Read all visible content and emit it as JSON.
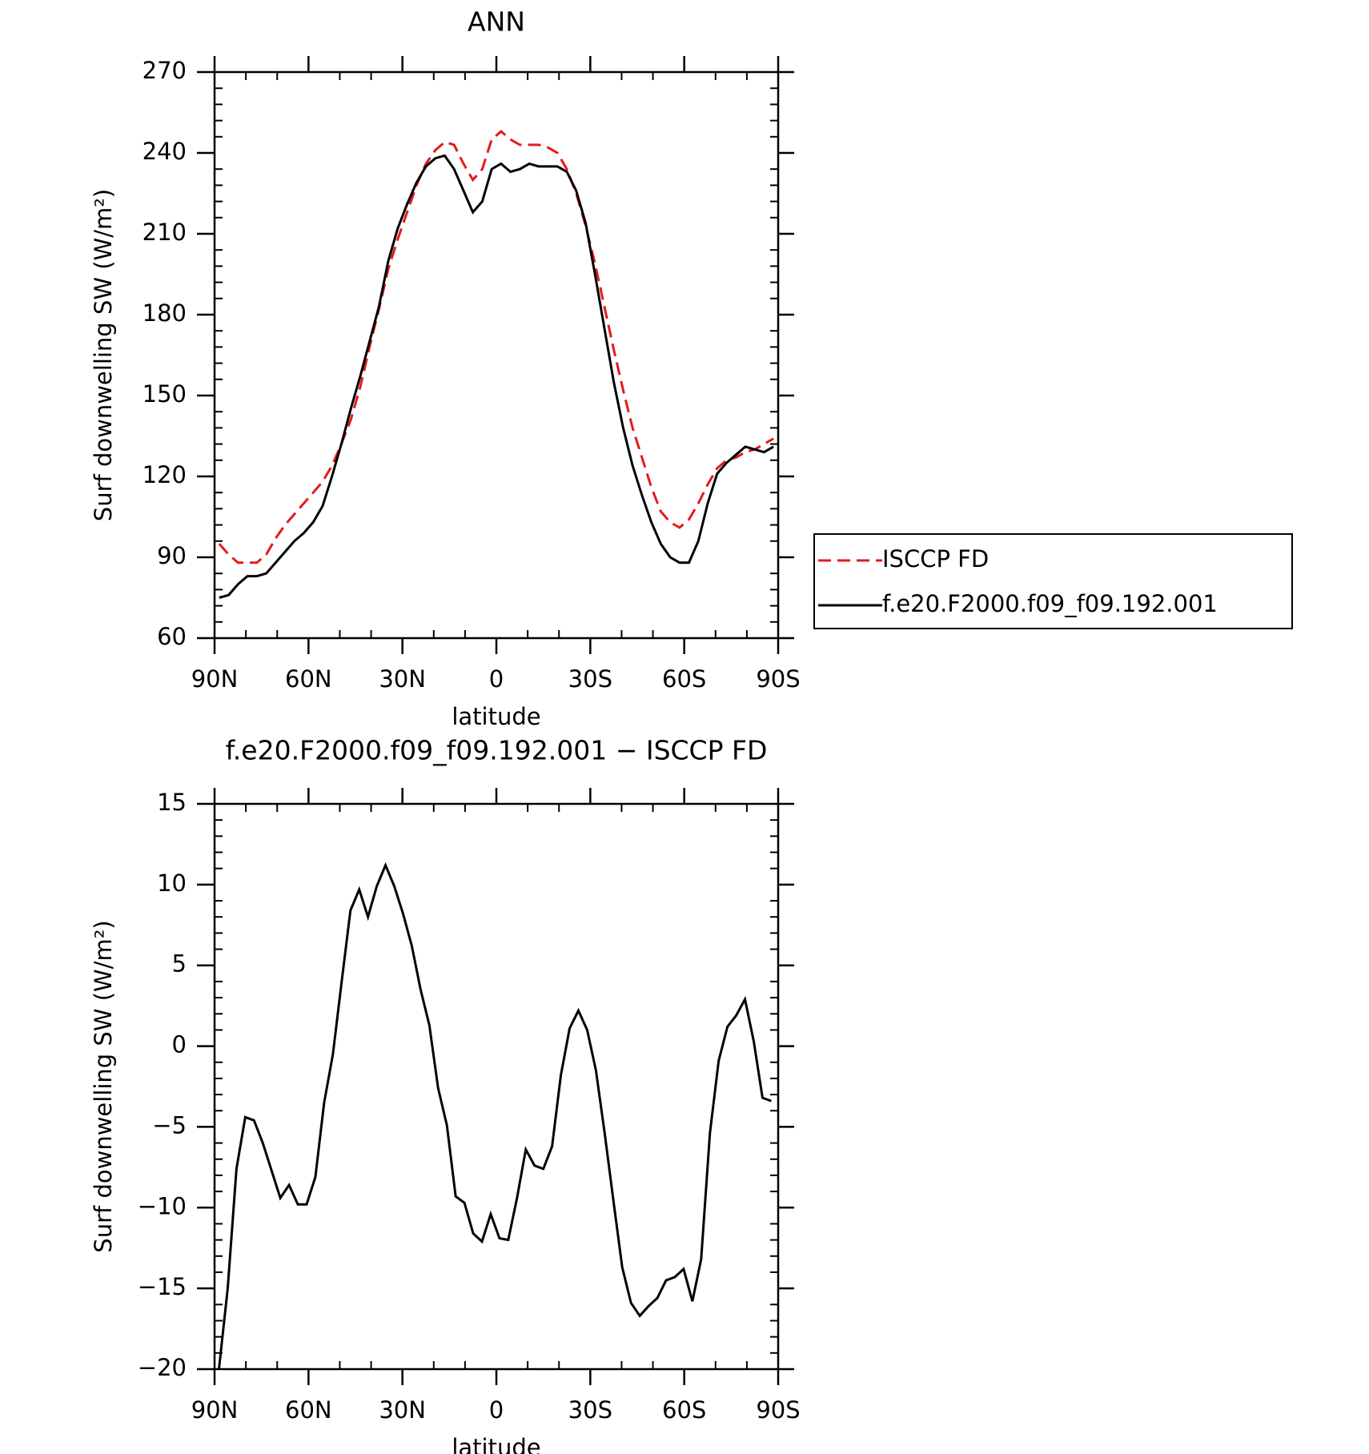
{
  "chart_data": [
    {
      "type": "line",
      "title": "ANN",
      "xlabel": "latitude",
      "ylabel": "Surf downwelling SW (W/m²)",
      "x": [
        88.5,
        85.5,
        82.5,
        79.5,
        76.5,
        73.5,
        70.5,
        67.5,
        64.5,
        61.5,
        58.5,
        55.5,
        52.5,
        49.5,
        46.5,
        43.5,
        40.5,
        37.5,
        34.5,
        31.5,
        28.5,
        25.5,
        22.5,
        19.5,
        16.5,
        13.5,
        10.5,
        7.5,
        4.5,
        1.5,
        -1.5,
        -4.5,
        -7.5,
        -10.5,
        -13.5,
        -16.5,
        -19.5,
        -22.5,
        -25.5,
        -28.5,
        -31.5,
        -34.5,
        -37.5,
        -40.5,
        -43.5,
        -46.5,
        -49.5,
        -52.5,
        -55.5,
        -58.5,
        -61.5,
        -64.5,
        -67.5,
        -70.5,
        -73.5,
        -76.5,
        -79.5,
        -82.5,
        -85.5,
        -88.5
      ],
      "series": [
        {
          "name": "ISCCP FD",
          "color": "#e41a1c",
          "linestyle": "dashed",
          "values": [
            95,
            91,
            88,
            88,
            88,
            91,
            97,
            102,
            106,
            110,
            114,
            118,
            124,
            132,
            141,
            153,
            168,
            182,
            197,
            208,
            218,
            228,
            236,
            241,
            244,
            243,
            236,
            230,
            234,
            245,
            248,
            245,
            243,
            243,
            243,
            242,
            240,
            234,
            225,
            213,
            199,
            183,
            167,
            152,
            138,
            127,
            116,
            107,
            103,
            101,
            104,
            110,
            117,
            123,
            126,
            127,
            129,
            130,
            132,
            134
          ]
        },
        {
          "name": "f.e20.F2000.f09_f09.192.001",
          "color": "#000000",
          "linestyle": "solid",
          "values": [
            75,
            76,
            80,
            83,
            83,
            84,
            88,
            92,
            96,
            99,
            103,
            109,
            120,
            132,
            145,
            157,
            170,
            183,
            200,
            212,
            221,
            229,
            235,
            238,
            239,
            234,
            226,
            218,
            222,
            234,
            236,
            233,
            234,
            236,
            235,
            235,
            235,
            233,
            226,
            214,
            195,
            175,
            155,
            138,
            124,
            113,
            103,
            95,
            90,
            88,
            88,
            96,
            110,
            121,
            125,
            128,
            131,
            130,
            129,
            131
          ]
        }
      ],
      "xlim": [
        90,
        -90
      ],
      "xticks": [
        {
          "value": 90,
          "label": "90N"
        },
        {
          "value": 60,
          "label": "60N"
        },
        {
          "value": 30,
          "label": "30N"
        },
        0,
        {
          "value": -30,
          "label": "30S"
        },
        {
          "value": -60,
          "label": "60S"
        },
        {
          "value": -90,
          "label": "90S"
        }
      ],
      "ylim": [
        60,
        270
      ],
      "yticks": [
        60,
        90,
        120,
        150,
        180,
        210,
        240,
        270
      ],
      "legend": "right"
    },
    {
      "type": "line",
      "title": "f.e20.F2000.f09_f09.192.001 − ISCCP FD",
      "xlabel": "latitude",
      "ylabel": "Surf downwelling SW (W/m²)",
      "x": [
        88.6,
        85.8,
        83,
        80.2,
        77.4,
        74.6,
        71.8,
        69,
        66.2,
        63.4,
        60.6,
        57.8,
        55,
        52.2,
        49.4,
        46.6,
        43.8,
        41,
        38.2,
        35.4,
        32.6,
        29.8,
        27,
        24.2,
        21.4,
        18.6,
        15.8,
        13,
        10.2,
        7.4,
        4.6,
        1.8,
        -1,
        -3.8,
        -6.6,
        -9.4,
        -12.2,
        -15,
        -17.8,
        -20.6,
        -23.4,
        -26.2,
        -29,
        -31.8,
        -34.6,
        -37.4,
        -40.2,
        -43,
        -45.8,
        -48.6,
        -51.4,
        -54.2,
        -57,
        -59.8,
        -62.6,
        -65.4,
        -68.2,
        -71,
        -73.8,
        -76.6,
        -79.4,
        -82.2,
        -85,
        -87.8
      ],
      "series": [
        {
          "color": "#000000",
          "linestyle": "solid",
          "values": [
            -20,
            -15,
            -7.6,
            -4.4,
            -4.6,
            -6,
            -7.7,
            -9.4,
            -8.6,
            -9.8,
            -9.8,
            -8.1,
            -3.5,
            -0.5,
            4,
            8.4,
            9.7,
            8,
            9.9,
            11.2,
            9.9,
            8.2,
            6.2,
            3.5,
            1.3,
            -2.6,
            -4.9,
            -9.3,
            -9.7,
            -11.6,
            -12.1,
            -10.4,
            -11.9,
            -12,
            -9.4,
            -6.4,
            -7.4,
            -7.6,
            -6.2,
            -1.8,
            1.1,
            2.2,
            1,
            -1.5,
            -5.4,
            -9.6,
            -13.7,
            -15.9,
            -16.7,
            -16.1,
            -15.6,
            -14.5,
            -14.3,
            -13.8,
            -15.8,
            -13.2,
            -5.4,
            -0.9,
            1.2,
            1.9,
            2.9,
            0.3,
            -3.2,
            -3.4
          ]
        }
      ],
      "xlim": [
        90,
        -90
      ],
      "xticks": [
        {
          "value": 90,
          "label": "90N"
        },
        {
          "value": 60,
          "label": "60N"
        },
        {
          "value": 30,
          "label": "30N"
        },
        0,
        {
          "value": -30,
          "label": "30S"
        },
        {
          "value": -60,
          "label": "60S"
        },
        {
          "value": -90,
          "label": "90S"
        }
      ],
      "ylim": [
        -20,
        15
      ],
      "yticks": [
        {
          "value": -20,
          "label": "−20"
        },
        {
          "value": -15,
          "label": "−15"
        },
        {
          "value": -10,
          "label": "−10"
        },
        {
          "value": -5,
          "label": "−5"
        },
        0,
        5,
        10,
        15
      ]
    }
  ]
}
